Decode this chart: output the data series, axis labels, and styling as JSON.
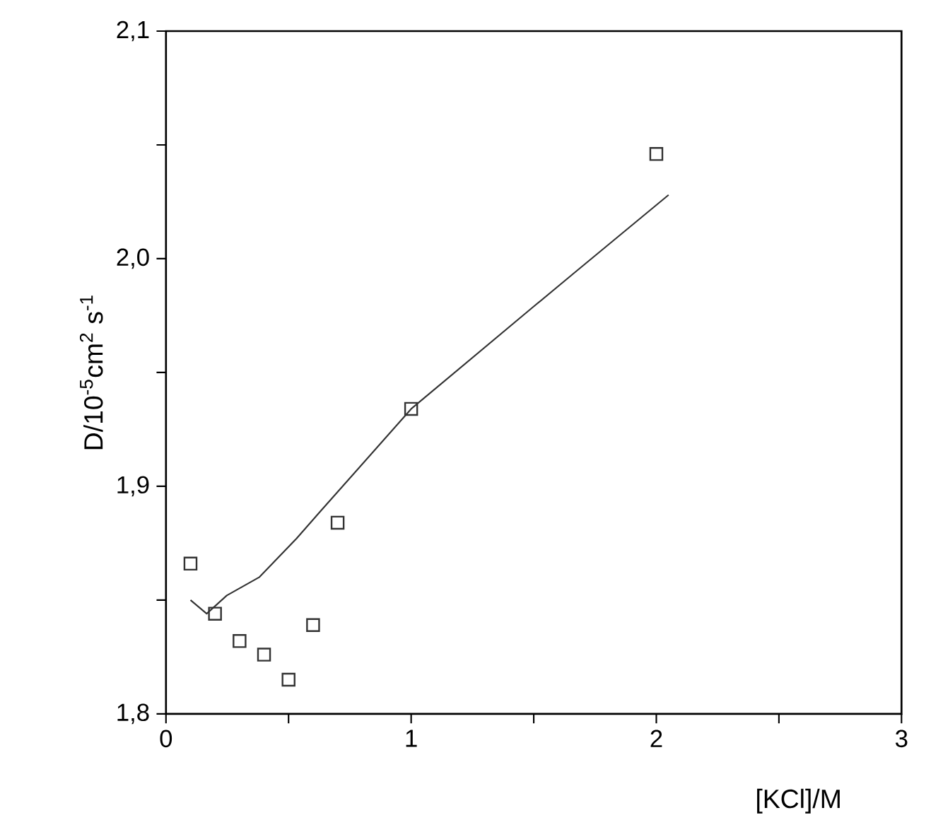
{
  "chart_data": {
    "type": "scatter",
    "xlabel": "[KCl]/M",
    "ylabel": "D/10$^{-5}$cm$^{2}$ s$^{-1}$",
    "xlim": [
      0,
      3
    ],
    "ylim": [
      1.8,
      2.1
    ],
    "xticks": [
      0,
      {
        "value": 0.5,
        "label": null
      },
      1,
      {
        "value": 1.5,
        "label": null
      },
      2,
      {
        "value": 2.5,
        "label": null
      },
      3
    ],
    "yticks": [
      {
        "value": 1.8,
        "label": "1,8"
      },
      {
        "value": 1.85,
        "label": null
      },
      {
        "value": 1.9,
        "label": "1,9"
      },
      {
        "value": 1.95,
        "label": null
      },
      {
        "value": 2.0,
        "label": "2,0"
      },
      {
        "value": 2.05,
        "label": null
      },
      {
        "value": 2.1,
        "label": "2,1"
      }
    ],
    "series": [
      {
        "marker": "square",
        "color": "#333333",
        "x": [
          0.1,
          0.2,
          0.3,
          0.4,
          0.5,
          0.6,
          0.7,
          1.0,
          2.0
        ],
        "values": [
          1.866,
          1.844,
          1.832,
          1.826,
          1.815,
          1.839,
          1.884,
          1.934,
          2.046
        ]
      },
      {
        "type": "line",
        "marker": "none",
        "line_style": "solid",
        "color": "#333333",
        "x": [
          0.1,
          0.166,
          0.248,
          0.38,
          0.532,
          0.63,
          1.0,
          1.5,
          1.668,
          2.05
        ],
        "values": [
          1.85,
          1.844,
          1.852,
          1.86,
          1.877,
          1.889,
          1.934,
          1.979,
          1.994,
          2.028
        ]
      }
    ]
  }
}
